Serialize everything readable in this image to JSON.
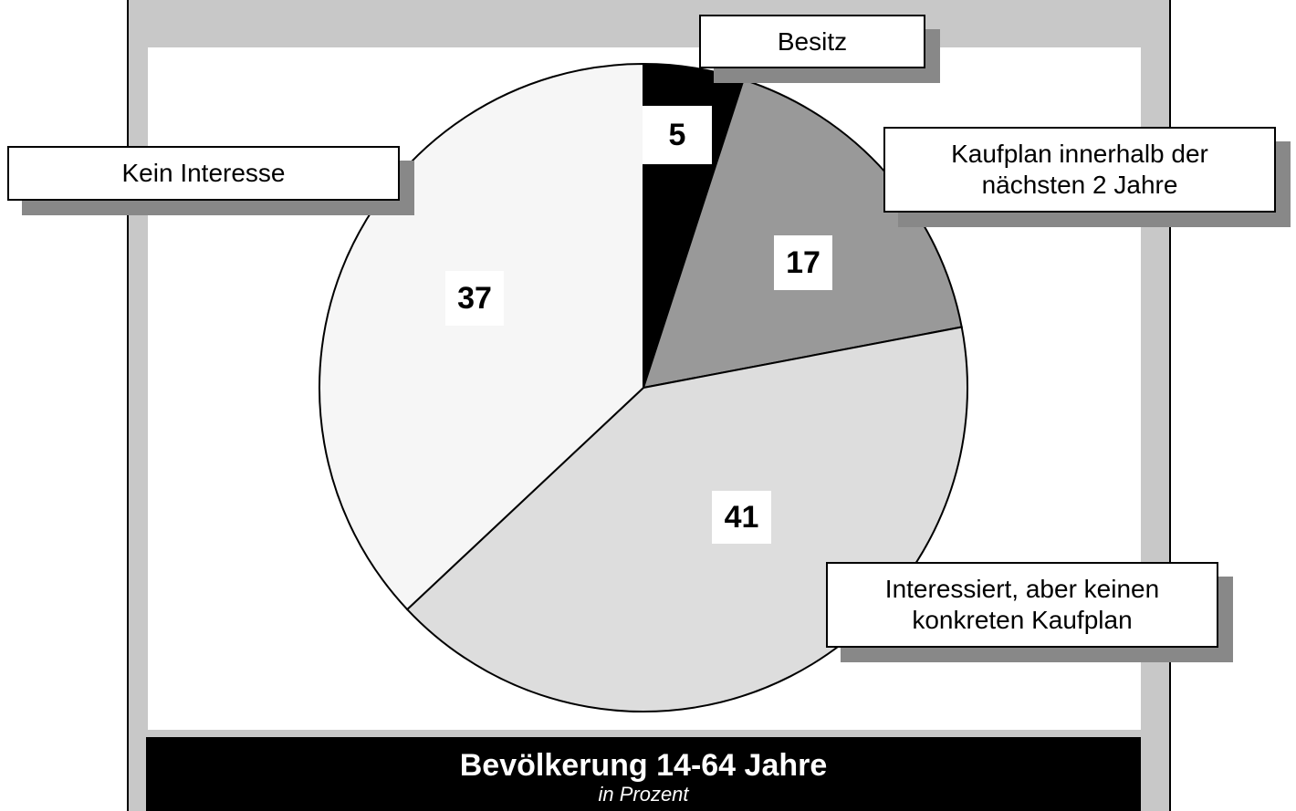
{
  "chart_data": {
    "type": "pie",
    "title": "Bevölkerung 14-64 Jahre",
    "subtitle": "in Prozent",
    "categories": [
      "Besitz",
      "Kaufplan innerhalb der nächsten 2 Jahre",
      "Interessiert, aber keinen konkreten Kaufplan",
      "Kein Interesse"
    ],
    "values": [
      5,
      17,
      41,
      37
    ],
    "colors": [
      "#000000",
      "#999999",
      "#dddddd",
      "#f6f6f6"
    ]
  }
}
